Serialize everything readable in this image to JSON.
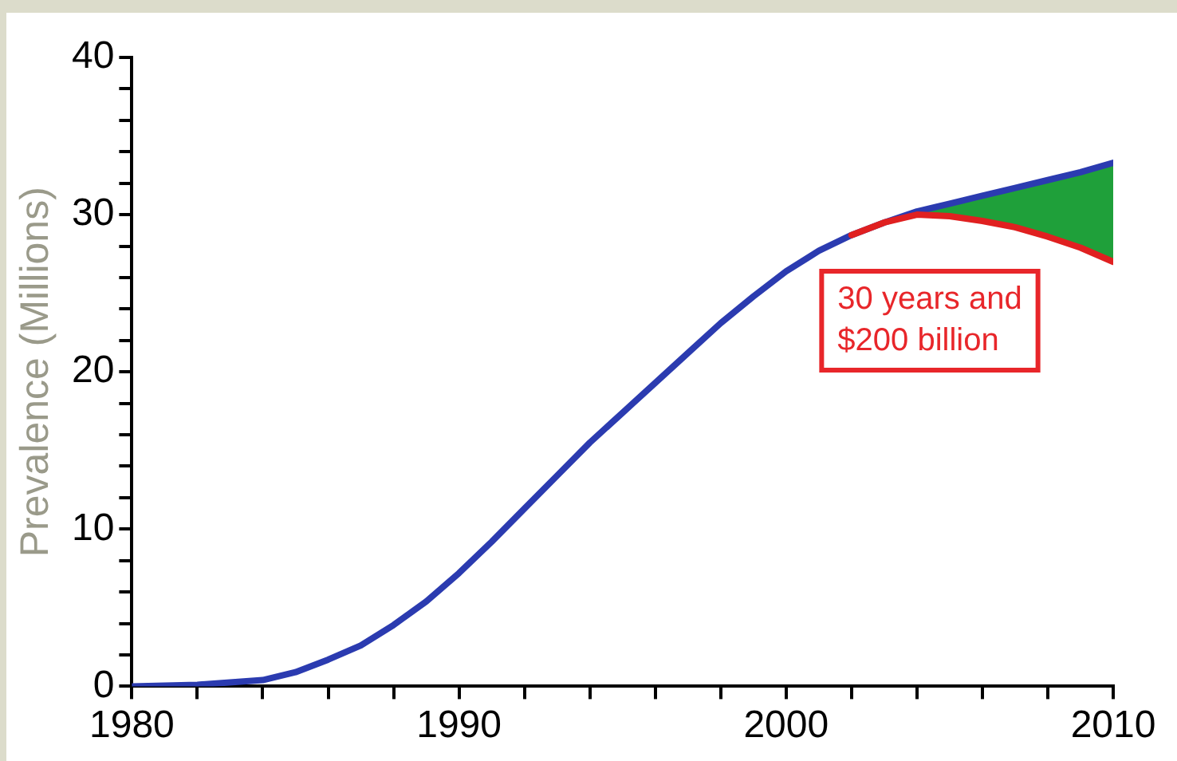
{
  "chart_data": {
    "type": "line",
    "ylabel": "Prevalence (Millions)",
    "xlim": [
      1980,
      2010
    ],
    "xticks": [
      1980,
      {
        "value": 1982,
        "label": null
      },
      {
        "value": 1984,
        "label": null
      },
      {
        "value": 1986,
        "label": null
      },
      {
        "value": 1988,
        "label": null
      },
      1990,
      {
        "value": 1992,
        "label": null
      },
      {
        "value": 1994,
        "label": null
      },
      {
        "value": 1996,
        "label": null
      },
      {
        "value": 1998,
        "label": null
      },
      2000,
      {
        "value": 2002,
        "label": null
      },
      {
        "value": 2004,
        "label": null
      },
      {
        "value": 2006,
        "label": null
      },
      {
        "value": 2008,
        "label": null
      },
      2010
    ],
    "ylim": [
      0,
      40
    ],
    "yticks": [
      0,
      {
        "value": 2,
        "label": null
      },
      {
        "value": 4,
        "label": null
      },
      {
        "value": 6,
        "label": null
      },
      {
        "value": 8,
        "label": null
      },
      10,
      {
        "value": 12,
        "label": null
      },
      {
        "value": 14,
        "label": null
      },
      {
        "value": 16,
        "label": null
      },
      {
        "value": 18,
        "label": null
      },
      20,
      {
        "value": 22,
        "label": null
      },
      {
        "value": 24,
        "label": null
      },
      {
        "value": 26,
        "label": null
      },
      {
        "value": 28,
        "label": null
      },
      30,
      {
        "value": 32,
        "label": null
      },
      {
        "value": 34,
        "label": null
      },
      {
        "value": 36,
        "label": null
      },
      {
        "value": 38,
        "label": null
      },
      40
    ],
    "grid": false,
    "legend": false,
    "marker": "none",
    "line_style": "solid",
    "series": [
      {
        "type": "area",
        "color": "#1fa03a",
        "x": [
          2002,
          2003,
          2004,
          2005,
          2006,
          2007,
          2008,
          2009,
          2010
        ],
        "values": [
          28.7,
          29.5,
          30.2,
          30.7,
          31.2,
          31.7,
          32.2,
          32.7,
          33.3
        ]
      },
      {
        "color": "#e02020",
        "x": [
          2002,
          2003,
          2004,
          2005,
          2006,
          2007,
          2008,
          2009,
          2010
        ],
        "values": [
          28.7,
          29.5,
          30.0,
          29.9,
          29.6,
          29.2,
          28.6,
          27.9,
          27.0
        ]
      },
      {
        "color": "#2b3bb0",
        "x": [
          1980,
          1982,
          1984,
          1985,
          1986,
          1987,
          1988,
          1989,
          1990,
          1991,
          1992,
          1993,
          1994,
          1995,
          1996,
          1997,
          1998,
          1999,
          2000,
          2001,
          2002,
          2003,
          2004,
          2005,
          2006,
          2007,
          2008,
          2009,
          2010
        ],
        "values": [
          0,
          0.1,
          0.4,
          0.9,
          1.7,
          2.6,
          3.9,
          5.4,
          7.2,
          9.2,
          11.3,
          13.4,
          15.5,
          17.4,
          19.3,
          21.2,
          23.1,
          24.8,
          26.4,
          27.7,
          28.7,
          29.5,
          30.2,
          30.7,
          31.2,
          31.7,
          32.2,
          32.7,
          33.3
        ]
      }
    ],
    "annotations": [
      "30 years and\n$200 billion"
    ]
  }
}
